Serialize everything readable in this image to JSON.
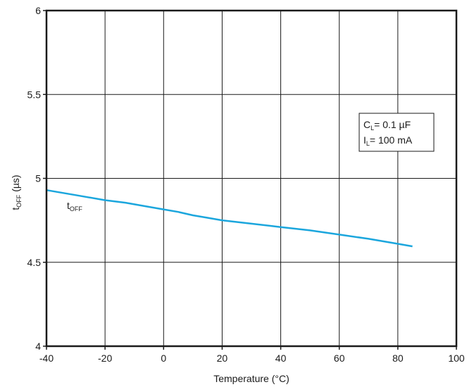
{
  "chart_data": {
    "type": "line",
    "xlabel": "Temperature (°C)",
    "ylabel": {
      "main": "t",
      "sub": "OFF",
      "unit": " (µs)"
    },
    "xlim": [
      -40,
      100
    ],
    "ylim": [
      4,
      6
    ],
    "x_ticks": [
      -40,
      -20,
      0,
      20,
      40,
      60,
      80,
      100
    ],
    "y_ticks": [
      4,
      4.5,
      5,
      5.5,
      6
    ],
    "x_tick_labels": [
      "-40",
      "-20",
      "0",
      "20",
      "40",
      "60",
      "80",
      "100"
    ],
    "y_tick_labels": [
      "4",
      "4.5",
      "5",
      "5.5",
      "6"
    ],
    "grid": true,
    "series": [
      {
        "name": "tOFF",
        "color": "#1ba6dd",
        "x": [
          -40,
          -30,
          -20,
          -13,
          -5,
          0,
          5,
          10,
          15,
          20,
          25,
          30,
          40,
          50,
          60,
          70,
          80,
          85
        ],
        "y": [
          4.93,
          4.9,
          4.87,
          4.855,
          4.83,
          4.815,
          4.8,
          4.78,
          4.765,
          4.75,
          4.74,
          4.73,
          4.71,
          4.69,
          4.665,
          4.64,
          4.61,
          4.595
        ]
      }
    ],
    "series_label": {
      "main": "t",
      "sub": "OFF"
    },
    "conditions": [
      {
        "main": "C",
        "sub": "L",
        "rest": "= 0.1 µF"
      },
      {
        "main": "I",
        "sub": "L",
        "rest": "= 100 mA"
      }
    ]
  }
}
